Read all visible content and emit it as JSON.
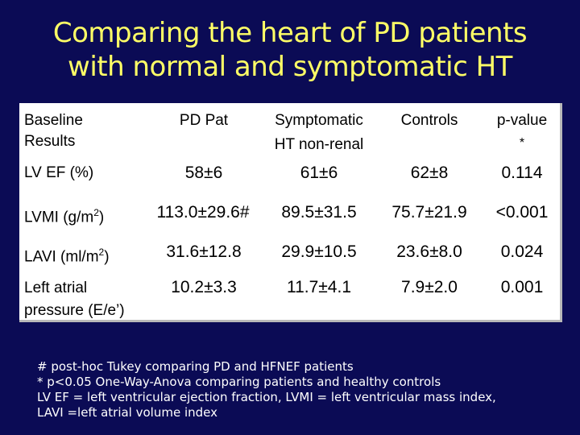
{
  "title": {
    "line1": "Comparing the heart of PD patients",
    "line2": "with normal and symptomatic HT"
  },
  "table": {
    "headers": {
      "label_line1": "Baseline",
      "label_line2": "Results",
      "col1": "PD Pat",
      "col2_line1": "Symptomatic",
      "col2_line2": "HT non-renal",
      "col3": "Controls",
      "col4_line1": "p-value",
      "col4_line2": "*"
    },
    "rows": [
      {
        "label": "LV EF (%)",
        "pd": "58±6",
        "symptomatic": "61±6",
        "controls": "62±8",
        "p": "0.114"
      },
      {
        "label": "LVMI (g/m",
        "label_sup": "2",
        "label_end": ")",
        "pd": "113.0±29.6#",
        "symptomatic": "89.5±31.5",
        "controls": "75.7±21.9",
        "p": "<0.001"
      },
      {
        "label": "LAVI (ml/m",
        "label_sup": "2",
        "label_end": ")",
        "pd": "31.6±12.8",
        "symptomatic": "29.9±10.5",
        "controls": "23.6±8.0",
        "p": "0.024"
      },
      {
        "label_line1": "Left atrial",
        "label_line2": "pressure (E/e’)",
        "pd": "10.2±3.3",
        "symptomatic": "11.7±4.1",
        "controls": "7.9±2.0",
        "p": "0.001"
      }
    ]
  },
  "footnotes": [
    "# post-hoc Tukey comparing PD and HFNEF patients",
    "* p<0.05 One-Way-Anova comparing patients and healthy controls",
    "LV EF = left ventricular ejection fraction, LVMI = left ventricular mass index,",
    "LAVI =left atrial volume index"
  ],
  "colors": {
    "background": "#0b0b55",
    "title": "#ffff66",
    "table_bg": "#ffffff",
    "footnote": "#ffffff"
  }
}
